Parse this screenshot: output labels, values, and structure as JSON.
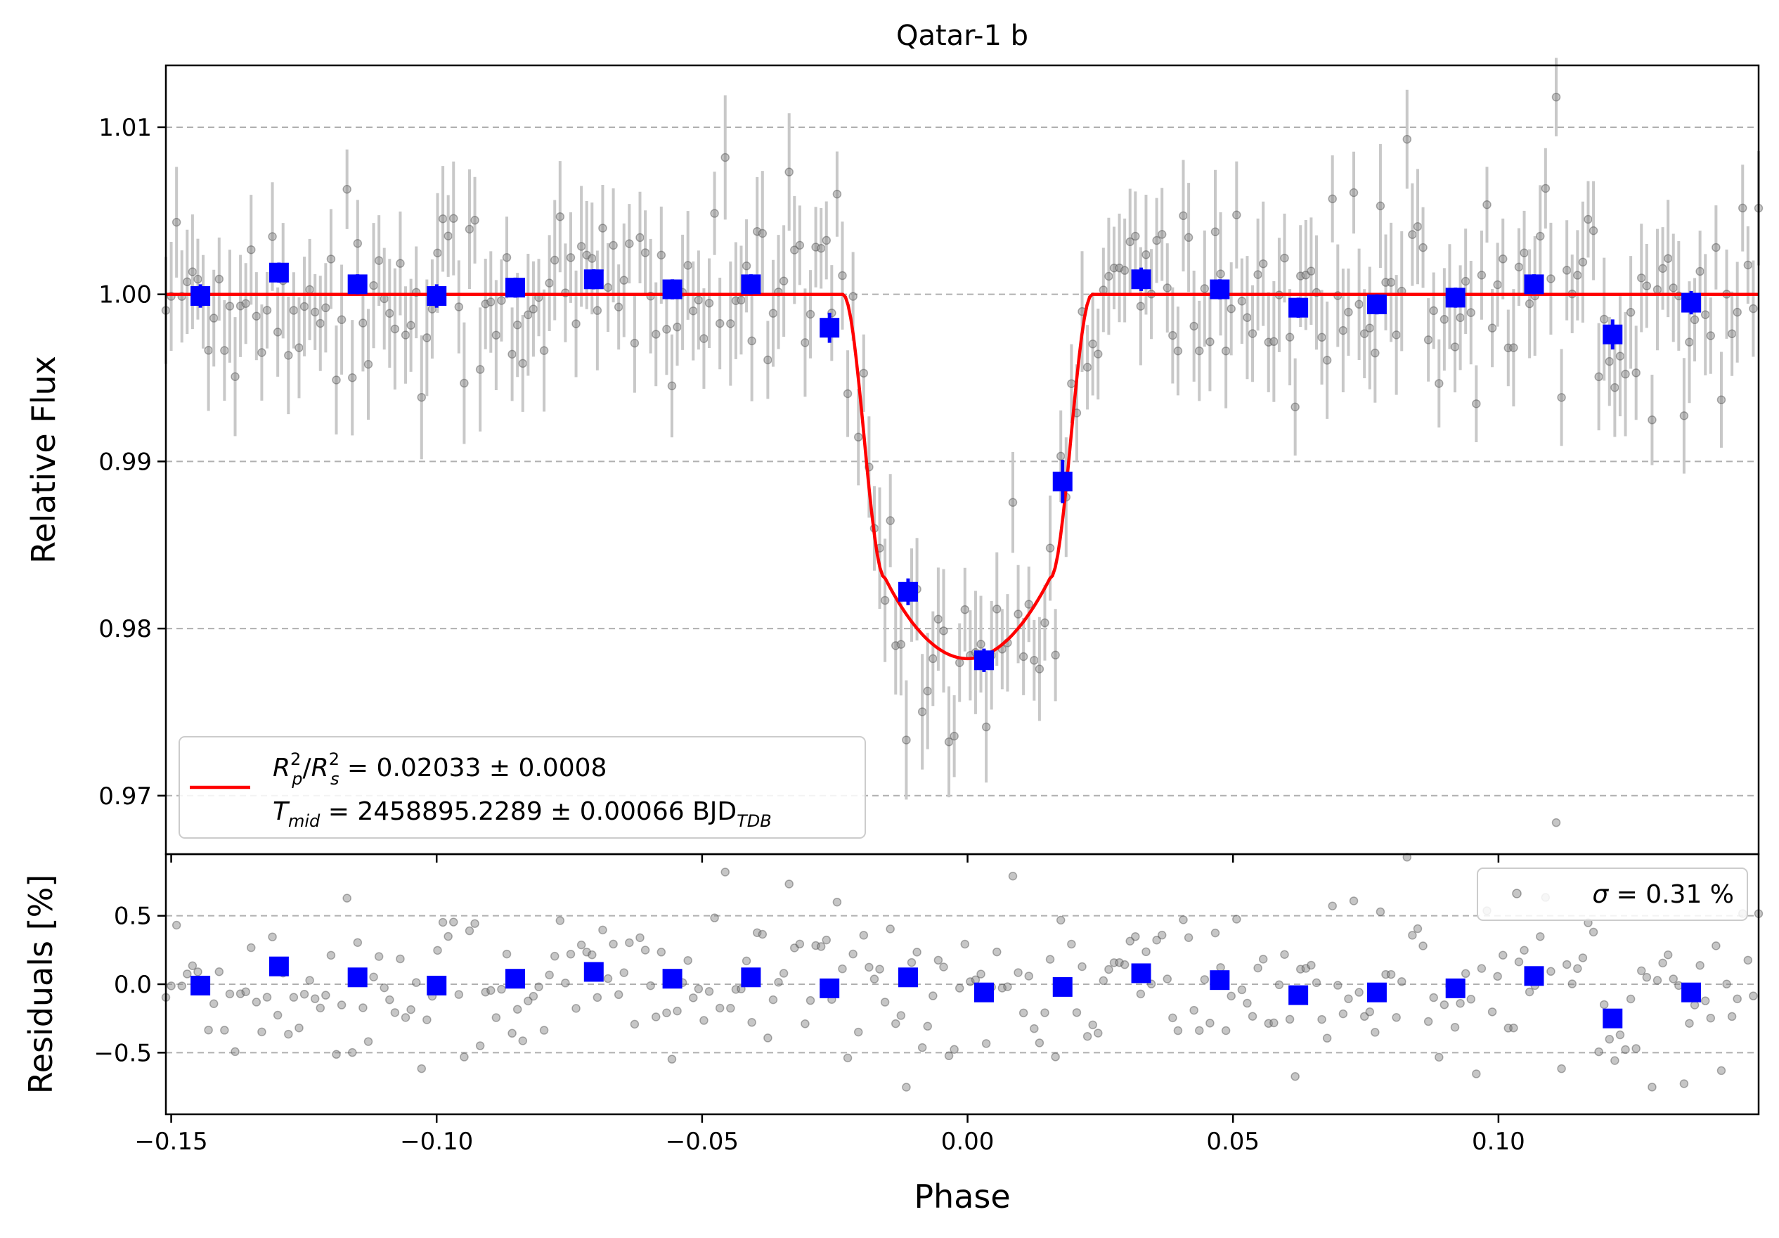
{
  "title": "Qatar-1 b",
  "chart_data": [
    {
      "type": "scatter",
      "panel": "light-curve",
      "title": "Qatar-1 b",
      "xlabel": "",
      "ylabel": "Relative Flux",
      "xlim": [
        -0.151,
        0.149
      ],
      "ylim": [
        0.9665,
        1.0137
      ],
      "yticks": [
        0.97,
        0.98,
        0.99,
        1.0,
        1.01
      ],
      "ytick_labels": [
        "0.97",
        "0.98",
        "0.99",
        "1.00",
        "1.01"
      ],
      "grid": "horizontal dashed",
      "legend_position": "lower-left",
      "legend": {
        "line1": {
          "lhs": "R_p^2/R_s^2",
          "value": " = 0.02033 ± 0.0008"
        },
        "line2": {
          "lhs": "T_mid",
          "value": " = 2458895.2289 ± 0.00066 BJD",
          "sub": "TDB"
        }
      },
      "model": {
        "name": "transit model",
        "baseline": 1.0,
        "depth_center": 0.9782,
        "t1": -0.0235,
        "t2": -0.0155,
        "t3": 0.0155,
        "t4": 0.0235,
        "color": "#ff0000"
      },
      "binned_series": {
        "name": "binned",
        "color": "#0000ff",
        "x": [
          -0.1445,
          -0.1297,
          -0.1149,
          -0.1,
          -0.0852,
          -0.0704,
          -0.0556,
          -0.0408,
          -0.026,
          -0.0112,
          0.0031,
          0.0179,
          0.0327,
          0.0475,
          0.0623,
          0.0771,
          0.0919,
          0.1067,
          0.1215,
          0.1363
        ],
        "y": [
          0.9999,
          1.0013,
          1.0006,
          0.9999,
          1.0004,
          1.0009,
          1.0003,
          1.0006,
          0.998,
          0.9822,
          0.9781,
          0.9888,
          1.0009,
          1.0003,
          0.9992,
          0.9994,
          0.9998,
          1.0006,
          0.9976,
          0.9995
        ],
        "yerr": [
          0.0007,
          0.0006,
          0.0006,
          0.0007,
          0.0006,
          0.0006,
          0.0006,
          0.0006,
          0.0009,
          0.0008,
          0.0007,
          0.0013,
          0.0007,
          0.0006,
          0.0006,
          0.0006,
          0.0006,
          0.0006,
          0.0009,
          0.0007
        ]
      },
      "raw_series": {
        "name": "unbinned",
        "color": "#808080",
        "x_start": -0.151,
        "x_end": 0.149,
        "count": 300,
        "typical_yerr": 0.003
      }
    },
    {
      "type": "scatter",
      "panel": "residuals",
      "xlabel": "Phase",
      "ylabel": "Residuals [%]",
      "xlim": [
        -0.151,
        0.149
      ],
      "ylim": [
        -0.95,
        0.95
      ],
      "xticks": [
        -0.15,
        -0.1,
        -0.05,
        0.0,
        0.05,
        0.1
      ],
      "xtick_labels": [
        "−0.15",
        "−0.10",
        "−0.05",
        "0.00",
        "0.05",
        "0.10"
      ],
      "yticks": [
        -0.5,
        0.0,
        0.5
      ],
      "ytick_labels": [
        "−0.5",
        "0.0",
        "0.5"
      ],
      "grid": "horizontal dashed",
      "legend_position": "upper-right",
      "legend": {
        "sigma_symbol": "σ",
        "value": " = 0.31 %"
      },
      "binned_series": {
        "name": "binned residuals",
        "color": "#0000ff",
        "x": [
          -0.1445,
          -0.1297,
          -0.1149,
          -0.1,
          -0.0852,
          -0.0704,
          -0.0556,
          -0.0408,
          -0.026,
          -0.0112,
          0.0031,
          0.0179,
          0.0327,
          0.0475,
          0.0623,
          0.0771,
          0.0919,
          0.1067,
          0.1215,
          0.1363
        ],
        "y": [
          -0.01,
          0.13,
          0.05,
          -0.01,
          0.04,
          0.09,
          0.04,
          0.05,
          -0.03,
          0.05,
          -0.06,
          -0.02,
          0.08,
          0.03,
          -0.08,
          -0.06,
          -0.03,
          0.06,
          -0.25,
          -0.06
        ]
      },
      "raw_series": {
        "name": "unbinned residuals",
        "color": "#808080",
        "sigma_percent": 0.31
      }
    }
  ]
}
